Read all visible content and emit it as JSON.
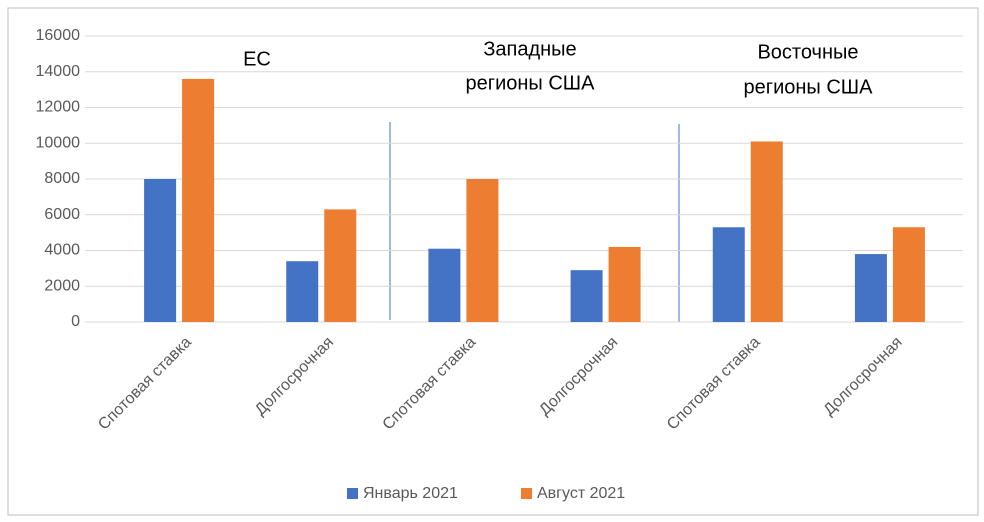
{
  "chart_data": {
    "type": "bar",
    "categories": [
      "Спотовая ставка",
      "Долгосрочная",
      "Спотовая ставка",
      "Долгосрочная",
      "Спотовая ставка",
      "Долгосрочная"
    ],
    "series": [
      {
        "name": "Январь 2021",
        "color": "#4472c4",
        "values": [
          8000,
          3400,
          4100,
          2900,
          5300,
          3800
        ]
      },
      {
        "name": "Август 2021",
        "color": "#ed7d31",
        "values": [
          13600,
          6300,
          8000,
          4200,
          10100,
          5300
        ]
      }
    ],
    "group_labels": [
      [
        "ЕС"
      ],
      [
        "Западные",
        "регионы США"
      ],
      [
        "Восточные",
        "регионы США"
      ]
    ],
    "ylim": [
      0,
      16000
    ],
    "yticks": [
      0,
      2000,
      4000,
      6000,
      8000,
      10000,
      12000,
      14000,
      16000
    ],
    "grid": true,
    "legend": "bottom"
  }
}
